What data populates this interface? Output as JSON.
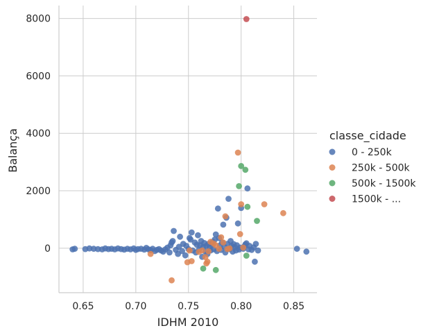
{
  "chart_data": {
    "type": "scatter",
    "xlabel": "IDHM 2010",
    "ylabel": "Balança",
    "xlim": [
      0.627,
      0.872
    ],
    "ylim": [
      -1550,
      8450
    ],
    "xticks": [
      0.65,
      0.7,
      0.75,
      0.8,
      0.85
    ],
    "xtick_labels": [
      "0.65",
      "0.70",
      "0.75",
      "0.80",
      "0.85"
    ],
    "yticks": [
      0,
      2000,
      4000,
      6000,
      8000
    ],
    "ytick_labels": [
      "0",
      "2000",
      "4000",
      "6000",
      "8000"
    ],
    "grid": true,
    "legend": {
      "title": "classe_cidade",
      "placement": "right"
    },
    "series": [
      {
        "name": "0 - 250k",
        "color": "#4c72b0",
        "points": [
          [
            0.64,
            -40
          ],
          [
            0.642,
            -20
          ],
          [
            0.652,
            -30
          ],
          [
            0.656,
            -10
          ],
          [
            0.66,
            -20
          ],
          [
            0.664,
            -30
          ],
          [
            0.668,
            -40
          ],
          [
            0.671,
            -10
          ],
          [
            0.674,
            -30
          ],
          [
            0.677,
            -20
          ],
          [
            0.68,
            -40
          ],
          [
            0.683,
            -10
          ],
          [
            0.686,
            -30
          ],
          [
            0.689,
            -50
          ],
          [
            0.692,
            -20
          ],
          [
            0.695,
            -40
          ],
          [
            0.698,
            -10
          ],
          [
            0.7,
            -60
          ],
          [
            0.702,
            -30
          ],
          [
            0.705,
            -20
          ],
          [
            0.708,
            -50
          ],
          [
            0.71,
            10
          ],
          [
            0.712,
            -40
          ],
          [
            0.714,
            -70
          ],
          [
            0.716,
            -20
          ],
          [
            0.718,
            -100
          ],
          [
            0.72,
            -60
          ],
          [
            0.722,
            -30
          ],
          [
            0.724,
            -80
          ],
          [
            0.726,
            -120
          ],
          [
            0.728,
            -40
          ],
          [
            0.73,
            20
          ],
          [
            0.732,
            -150
          ],
          [
            0.733,
            100
          ],
          [
            0.734,
            200
          ],
          [
            0.735,
            250
          ],
          [
            0.736,
            600
          ],
          [
            0.738,
            -60
          ],
          [
            0.74,
            -200
          ],
          [
            0.741,
            50
          ],
          [
            0.742,
            400
          ],
          [
            0.744,
            -100
          ],
          [
            0.745,
            150
          ],
          [
            0.747,
            -250
          ],
          [
            0.748,
            80
          ],
          [
            0.75,
            -30
          ],
          [
            0.751,
            350
          ],
          [
            0.752,
            300
          ],
          [
            0.753,
            550
          ],
          [
            0.754,
            -80
          ],
          [
            0.756,
            200
          ],
          [
            0.757,
            -150
          ],
          [
            0.758,
            120
          ],
          [
            0.759,
            450
          ],
          [
            0.76,
            -50
          ],
          [
            0.761,
            100
          ],
          [
            0.762,
            250
          ],
          [
            0.763,
            -300
          ],
          [
            0.764,
            50
          ],
          [
            0.765,
            180
          ],
          [
            0.766,
            -120
          ],
          [
            0.767,
            80
          ],
          [
            0.768,
            -200
          ],
          [
            0.769,
            150
          ],
          [
            0.77,
            30
          ],
          [
            0.771,
            -80
          ],
          [
            0.772,
            120
          ],
          [
            0.773,
            220
          ],
          [
            0.774,
            -40
          ],
          [
            0.775,
            300
          ],
          [
            0.776,
            480
          ],
          [
            0.777,
            -100
          ],
          [
            0.778,
            1380
          ],
          [
            0.779,
            350
          ],
          [
            0.78,
            100
          ],
          [
            0.781,
            -60
          ],
          [
            0.782,
            200
          ],
          [
            0.783,
            820
          ],
          [
            0.784,
            50
          ],
          [
            0.785,
            -150
          ],
          [
            0.786,
            1060
          ],
          [
            0.787,
            150
          ],
          [
            0.788,
            1720
          ],
          [
            0.789,
            -30
          ],
          [
            0.79,
            250
          ],
          [
            0.791,
            80
          ],
          [
            0.792,
            -120
          ],
          [
            0.793,
            140
          ],
          [
            0.794,
            30
          ],
          [
            0.795,
            -80
          ],
          [
            0.796,
            100
          ],
          [
            0.797,
            860
          ],
          [
            0.798,
            -50
          ],
          [
            0.799,
            20
          ],
          [
            0.8,
            1400
          ],
          [
            0.802,
            -20
          ],
          [
            0.803,
            60
          ],
          [
            0.804,
            130
          ],
          [
            0.805,
            170
          ],
          [
            0.806,
            2080
          ],
          [
            0.807,
            -40
          ],
          [
            0.808,
            80
          ],
          [
            0.81,
            -60
          ],
          [
            0.812,
            30
          ],
          [
            0.813,
            -470
          ],
          [
            0.814,
            150
          ],
          [
            0.816,
            -80
          ],
          [
            0.853,
            -20
          ],
          [
            0.862,
            -120
          ]
        ]
      },
      {
        "name": "250k - 500k",
        "color": "#dd8452",
        "points": [
          [
            0.714,
            -200
          ],
          [
            0.734,
            -1120
          ],
          [
            0.749,
            -490
          ],
          [
            0.751,
            -80
          ],
          [
            0.753,
            -450
          ],
          [
            0.76,
            -130
          ],
          [
            0.763,
            -80
          ],
          [
            0.766,
            -310
          ],
          [
            0.767,
            -530
          ],
          [
            0.768,
            -470
          ],
          [
            0.769,
            -110
          ],
          [
            0.771,
            220
          ],
          [
            0.774,
            160
          ],
          [
            0.776,
            100
          ],
          [
            0.779,
            -20
          ],
          [
            0.781,
            380
          ],
          [
            0.783,
            200
          ],
          [
            0.785,
            1110
          ],
          [
            0.787,
            -30
          ],
          [
            0.789,
            -10
          ],
          [
            0.797,
            3330
          ],
          [
            0.799,
            490
          ],
          [
            0.8,
            1530
          ],
          [
            0.802,
            20
          ],
          [
            0.822,
            1530
          ],
          [
            0.84,
            1220
          ]
        ]
      },
      {
        "name": "500k - 1500k",
        "color": "#55a868",
        "points": [
          [
            0.764,
            -710
          ],
          [
            0.776,
            -760
          ],
          [
            0.798,
            2160
          ],
          [
            0.8,
            2860
          ],
          [
            0.804,
            2730
          ],
          [
            0.805,
            -260
          ],
          [
            0.806,
            1440
          ],
          [
            0.815,
            950
          ]
        ]
      },
      {
        "name": "1500k - ...",
        "color": "#c44e52",
        "points": [
          [
            0.805,
            7980
          ]
        ]
      }
    ]
  }
}
